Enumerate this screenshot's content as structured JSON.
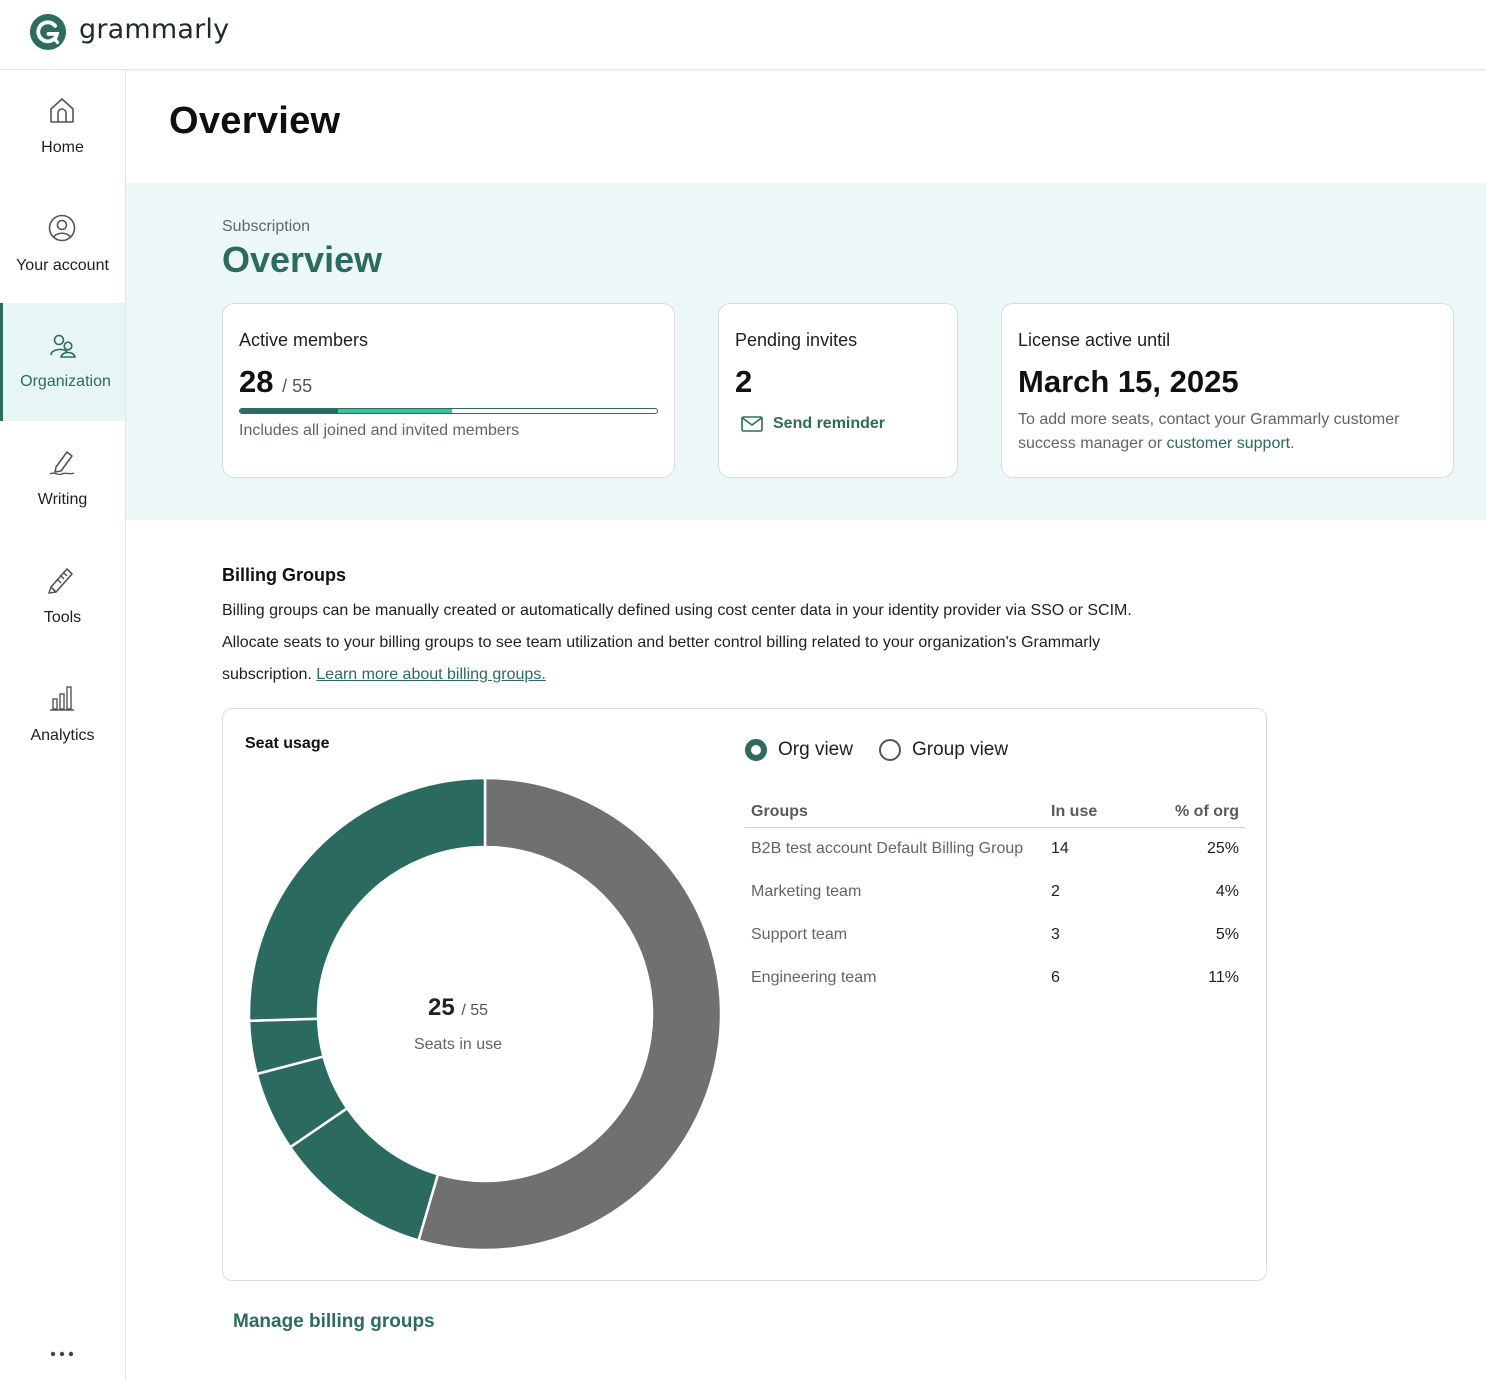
{
  "app": {
    "brand": "grammarly"
  },
  "sidebar": {
    "items": [
      {
        "label": "Home",
        "icon": "home-icon"
      },
      {
        "label": "Your account",
        "icon": "user-circle-icon"
      },
      {
        "label": "Organization",
        "icon": "people-icon",
        "active": true
      },
      {
        "label": "Writing",
        "icon": "pen-icon"
      },
      {
        "label": "Tools",
        "icon": "tools-icon"
      },
      {
        "label": "Analytics",
        "icon": "bar-chart-icon"
      }
    ],
    "more_icon": "more-dots-icon"
  },
  "page": {
    "title": "Overview"
  },
  "subscription": {
    "eyebrow": "Subscription",
    "title": "Overview",
    "active_members": {
      "label": "Active members",
      "count": "28",
      "total": "/ 55",
      "note": "Includes all joined and invited members",
      "progress_joined_fraction": 0.236,
      "progress_invited_fraction": 0.273
    },
    "pending_invites": {
      "label": "Pending invites",
      "count": "2",
      "action": "Send reminder"
    },
    "license": {
      "label": "License active until",
      "date": "March 15, 2025",
      "note": "To add more seats, contact your Grammarly customer success manager or",
      "link": "customer support",
      "note_end": "."
    }
  },
  "billing_groups": {
    "title": "Billing Groups",
    "description": "Billing groups can be manually created or automatically defined using cost center data in your identity provider via SSO or SCIM. Allocate seats to your billing groups to see team utilization and better control billing related to your organization's Grammarly subscription.",
    "learn_more": "Learn more about billing groups.",
    "seat_usage": {
      "title": "Seat usage",
      "in_use": "25",
      "total": "/ 55",
      "center_label": "Seats in use",
      "views": [
        {
          "label": "Org view",
          "selected": true
        },
        {
          "label": "Group view",
          "selected": false
        }
      ],
      "columns": [
        "Groups",
        "In use",
        "% of org"
      ],
      "rows": [
        {
          "group": "B2B test account Default Billing Group",
          "in_use": "14",
          "pct": "25%"
        },
        {
          "group": "Marketing team",
          "in_use": "2",
          "pct": "4%"
        },
        {
          "group": "Support team",
          "in_use": "3",
          "pct": "5%"
        },
        {
          "group": "Engineering team",
          "in_use": "6",
          "pct": "11%"
        }
      ],
      "colors": {
        "used": "#2b6a5e",
        "unused": "#707070"
      }
    },
    "manage_link": "Manage billing groups"
  },
  "chart_data": {
    "type": "pie",
    "title": "Seat usage",
    "series": [
      {
        "name": "B2B test account Default Billing Group",
        "value": 14
      },
      {
        "name": "Marketing team",
        "value": 2
      },
      {
        "name": "Support team",
        "value": 3
      },
      {
        "name": "Engineering team",
        "value": 6
      },
      {
        "value": 30
      }
    ]
  }
}
